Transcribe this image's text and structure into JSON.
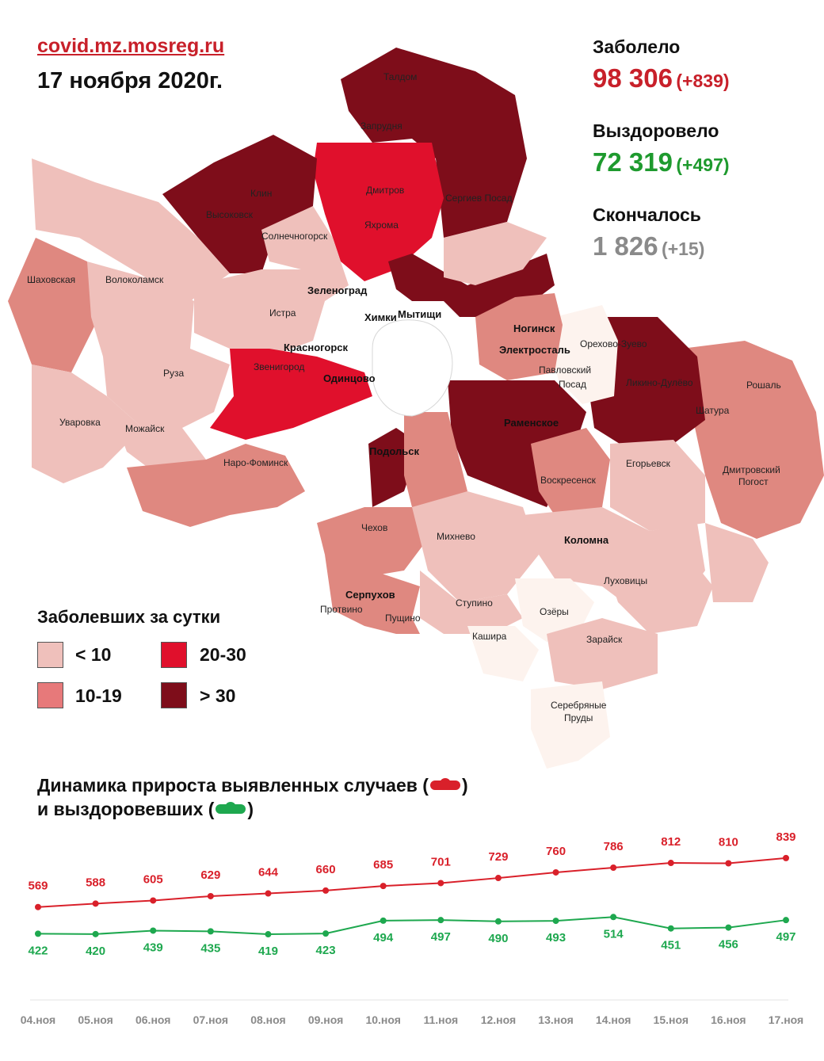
{
  "header": {
    "site": "covid.mz.mosreg.ru",
    "date": "17 ноября 2020г."
  },
  "stats": {
    "infected": {
      "label": "Заболело",
      "value": "98 306",
      "delta": "(+839)",
      "color": "#c8202a"
    },
    "recovered": {
      "label": "Выздоровело",
      "value": "72 319",
      "delta": "(+497)",
      "color": "#1e9a2e"
    },
    "deceased": {
      "label": "Скончалось",
      "value": "1 826",
      "delta": "(+15)",
      "color": "#8a8a8a"
    }
  },
  "legend": {
    "title": "Заболевших за сутки",
    "items": [
      {
        "label": "< 10",
        "color": "#efc0bb"
      },
      {
        "label": "20-30",
        "color": "#e0102c"
      },
      {
        "label": "10-19",
        "color": "#e7797a"
      },
      {
        "label": "> 30",
        "color": "#7e0d1a"
      }
    ]
  },
  "map": {
    "cities": [
      "Талдом",
      "Запрудня",
      "Дмитров",
      "Яхрома",
      "Сергиев Посад",
      "Клин",
      "Высоковск",
      "Солнечногорск",
      "Шаховская",
      "Волоколамск",
      "Зеленоград",
      "Истра",
      "Химки",
      "Мытищи",
      "Красногорск",
      "Ногинск",
      "Электросталь",
      "Орехово-Зуево",
      "Павловский",
      "Посад",
      "Ликино-Дулёво",
      "Звенигород",
      "Одинцово",
      "Руза",
      "Уваровка",
      "Можайск",
      "Рошаль",
      "Шатура",
      "Раменское",
      "Подольск",
      "Наро-Фоминск",
      "Егорьевск",
      "Воскресенск",
      "Дмитровский",
      "Погост",
      "Чехов",
      "Михнево",
      "Коломна",
      "Луховицы",
      "Серпухов",
      "Пущино",
      "Протвино",
      "Ступино",
      "Озёры",
      "Кашира",
      "Зарайск",
      "Серебряные",
      "Пруды"
    ]
  },
  "chart": {
    "title_line1": "Динамика прироста выявленных случаев (",
    "title_line1_end": ")",
    "title_line2": "и выздоровевших (",
    "title_line2_end": ")"
  },
  "chart_data": {
    "type": "line",
    "x": [
      "04.ноя",
      "05.ноя",
      "06.ноя",
      "07.ноя",
      "08.ноя",
      "09.ноя",
      "10.ноя",
      "11.ноя",
      "12.ноя",
      "13.ноя",
      "14.ноя",
      "15.ноя",
      "16.ноя",
      "17.ноя"
    ],
    "series": [
      {
        "color": "#d9202a",
        "values": [
          569,
          588,
          605,
          629,
          644,
          660,
          685,
          701,
          729,
          760,
          786,
          812,
          810,
          839
        ]
      },
      {
        "color": "#1ea84f",
        "values": [
          422,
          420,
          439,
          435,
          419,
          423,
          494,
          497,
          490,
          493,
          514,
          451,
          456,
          497
        ]
      }
    ]
  }
}
